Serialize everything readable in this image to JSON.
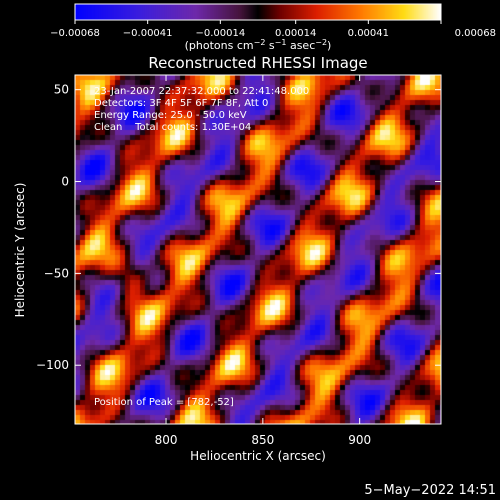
{
  "chart_data": {
    "type": "heatmap",
    "title": "Reconstructed RHESSI Image",
    "xlabel": "Heliocentric X (arcsec)",
    "ylabel": "Heliocentric Y (arcsec)",
    "xlim": [
      753,
      942
    ],
    "ylim": [
      -132,
      58
    ],
    "x_ticks": [
      800,
      850,
      900
    ],
    "y_ticks": [
      -100,
      -50,
      0,
      50
    ],
    "x_tick_labels": [
      "800",
      "850",
      "900"
    ],
    "y_tick_labels": [
      "−100",
      "−50",
      "0",
      "50"
    ],
    "colorbar": {
      "min": -0.00068,
      "max": 0.00068,
      "ticks": [
        -0.00068,
        -0.00041,
        -0.00014,
        0.00014,
        0.00041,
        0.00068
      ],
      "tick_labels": [
        "−0.00068",
        "−0.00041",
        "−0.00014",
        "0.00014",
        "0.00041",
        "0.00068"
      ],
      "unit_label_html": "(photons cm<tspan baseline-shift=\"super\" font-size=\"8\">−2</tspan> s<tspan baseline-shift=\"super\" font-size=\"8\">−1</tspan> asec<tspan baseline-shift=\"super\" font-size=\"8\">−2</tspan>)",
      "colormap": "blue-purple-red-yellow-white"
    },
    "peak": [
      782,
      -52
    ],
    "annotations": {
      "time": "23-Jan-2007 22:37:32.000 to 22:41:48.000",
      "detectors": "Detectors: 3F 4F 5F 6F 7F 8F, Att 0",
      "energy": "Energy Range: 25.0 - 50.0 keV",
      "clean": "Clean    Total counts: 1.30E+04",
      "peak_text": "Position of Peak = [782,-52]"
    }
  },
  "footer": {
    "date": "5−May−2022 14:51"
  }
}
